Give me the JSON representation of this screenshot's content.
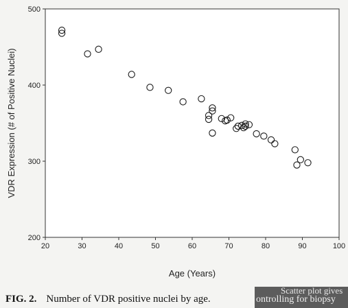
{
  "chart_data": {
    "type": "scatter",
    "xlabel": "Age (Years)",
    "ylabel": "VDR Expression (# of Positive Nuclei)",
    "xlim": [
      20,
      100
    ],
    "ylim": [
      200,
      500
    ],
    "x_ticks": [
      "20",
      "30",
      "40",
      "50",
      "60",
      "70",
      "80",
      "90",
      "100"
    ],
    "y_ticks": [
      "200",
      "300",
      "400",
      "500"
    ],
    "grid": false,
    "marker": "open-circle",
    "points": [
      {
        "x": 24.5,
        "y": 472
      },
      {
        "x": 24.5,
        "y": 468
      },
      {
        "x": 31.5,
        "y": 441
      },
      {
        "x": 34.5,
        "y": 447
      },
      {
        "x": 43.5,
        "y": 414
      },
      {
        "x": 48.5,
        "y": 397
      },
      {
        "x": 53.5,
        "y": 393
      },
      {
        "x": 57.5,
        "y": 378
      },
      {
        "x": 62.5,
        "y": 382
      },
      {
        "x": 64.5,
        "y": 360
      },
      {
        "x": 64.5,
        "y": 355
      },
      {
        "x": 65.5,
        "y": 370
      },
      {
        "x": 65.5,
        "y": 366
      },
      {
        "x": 65.5,
        "y": 337
      },
      {
        "x": 68.0,
        "y": 356
      },
      {
        "x": 69.0,
        "y": 353
      },
      {
        "x": 69.5,
        "y": 354
      },
      {
        "x": 70.5,
        "y": 357
      },
      {
        "x": 72.0,
        "y": 343
      },
      {
        "x": 72.5,
        "y": 346
      },
      {
        "x": 73.5,
        "y": 347
      },
      {
        "x": 74.0,
        "y": 344
      },
      {
        "x": 74.5,
        "y": 349
      },
      {
        "x": 74.5,
        "y": 346
      },
      {
        "x": 75.5,
        "y": 348
      },
      {
        "x": 77.5,
        "y": 336
      },
      {
        "x": 79.5,
        "y": 333
      },
      {
        "x": 81.5,
        "y": 328
      },
      {
        "x": 82.5,
        "y": 323
      },
      {
        "x": 88.0,
        "y": 315
      },
      {
        "x": 88.5,
        "y": 295
      },
      {
        "x": 89.5,
        "y": 302
      },
      {
        "x": 91.5,
        "y": 298
      }
    ]
  },
  "caption": {
    "label": "FIG. 2.",
    "text": "Number of VDR positive nuclei by age."
  },
  "overlay": {
    "line1": "Scatter plot gives",
    "line2": "ontrolling for biopsy"
  },
  "colors": {
    "background": "#f4f4f2",
    "plot_area": "#ffffff",
    "marker_stroke": "#1a1a1a",
    "overlay": "#5c5c5c"
  }
}
